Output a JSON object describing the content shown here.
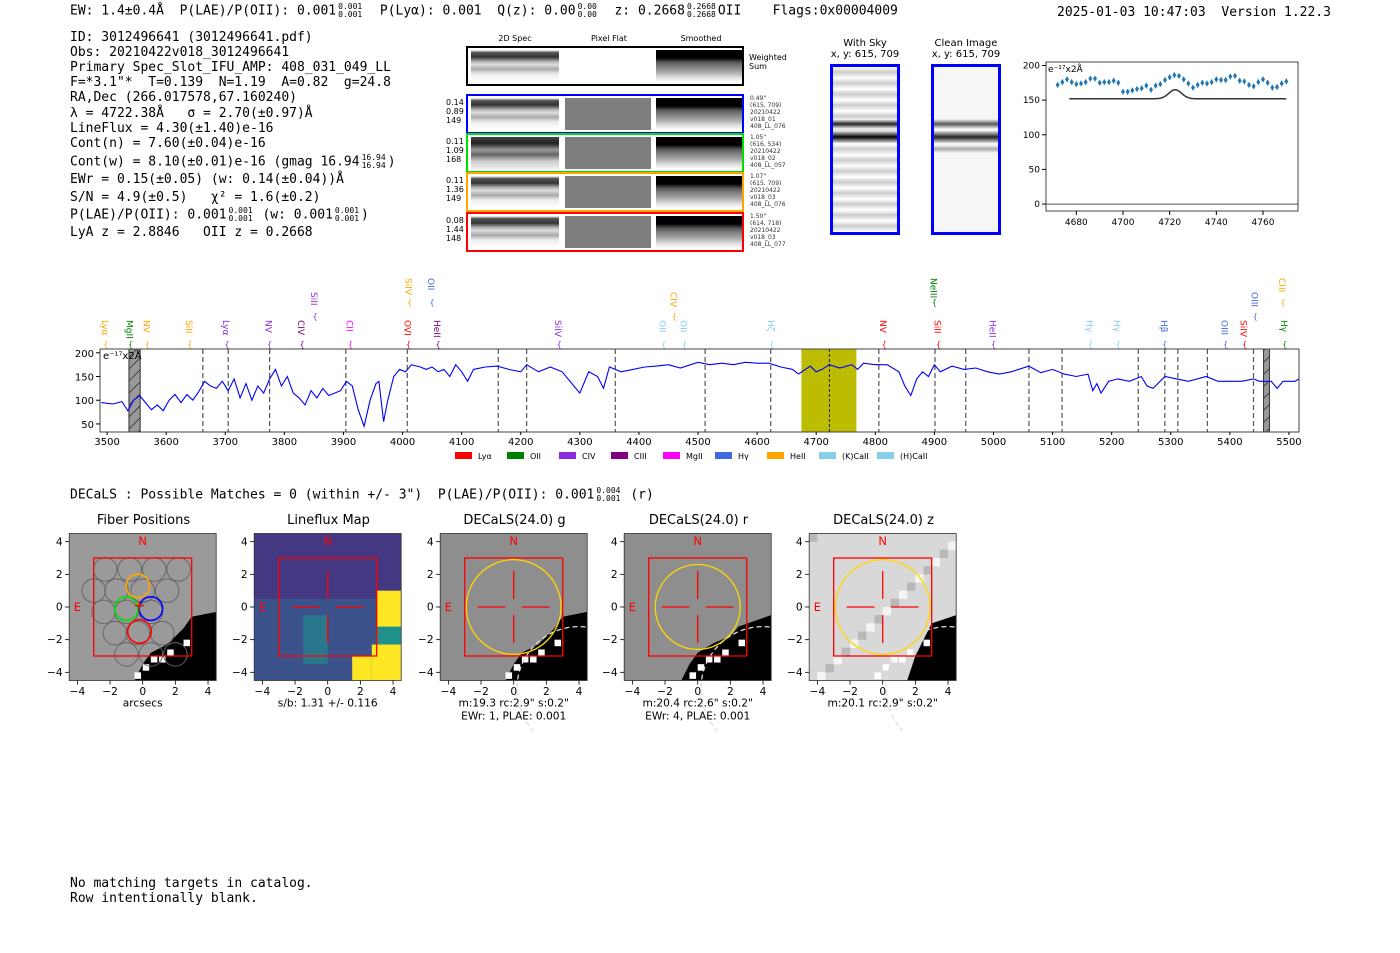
{
  "header": {
    "ew": "EW: 1.4±0.4Å",
    "plae_label": "P(LAE)/P(OII): 0.001",
    "plae_hi": "0.001",
    "plae_lo": "0.001",
    "plya": "P(Lyα): 0.001",
    "qz_label": "Q(z): 0.00",
    "qz_hi": "0.00",
    "qz_lo": "0.00",
    "z_label": "z: 0.2668",
    "z_hi": "0.2668",
    "z_lo": "0.2668",
    "z_line": "OII",
    "flags": "Flags:0x00004009",
    "timestamp": "2025-01-03 10:47:03",
    "version": "Version 1.22.3"
  },
  "info": {
    "id": "ID: 3012496641 (3012496641.pdf)",
    "obs": "Obs: 20210422v018_3012496641",
    "primary": "Primary Spec_Slot_IFU_AMP: 408_031_049_LL",
    "params": "F=*3.1\"*  T=0.139  N=1.19  A=0.82  g=24.8",
    "radec": "RA,Dec (266.017578,67.160240)",
    "lambda": "λ = 4722.38Å   σ = 2.70(±0.97)Å",
    "lineflux": "LineFlux = 4.30(±1.40)e-16",
    "contn": "Cont(n) = 7.60(±0.04)e-16",
    "contw": "Cont(w) = 8.10(±0.01)e-16 (gmag 16.94",
    "contw_hi": "16.94",
    "contw_lo": "16.94",
    "contw_end": ")",
    "ewr": "EWr = 0.15(±0.05) (w: 0.14(±0.04))Å",
    "sn": "S/N = 4.9(±0.5)   χ² = 1.6(±0.2)",
    "plae": "P(LAE)/P(OII): 0.001",
    "plae_hi": "0.001",
    "plae_lo": "0.001",
    "plae_w": "(w: 0.001",
    "plae_w_hi": "0.001",
    "plae_w_lo": "0.001",
    "plae_w_end": ")",
    "z": "LyA z = 2.8846   OII z = 0.2668"
  },
  "spec2d": {
    "col_headers": [
      "2D Spec",
      "Pixel Flat",
      "Smoothed"
    ],
    "weighted_label": "Weighted Sum",
    "rows": [
      {
        "color": "#0000ff",
        "left": [
          "0.14",
          "0.89",
          "149"
        ],
        "right": [
          "0.49\"",
          "(615, 709)",
          "20210422",
          "v018_01",
          "408_LL_076"
        ]
      },
      {
        "color": "#00e000",
        "left": [
          "0.11",
          "1.09",
          "168"
        ],
        "right": [
          "1.05\"",
          "(616, 534)",
          "20210422",
          "v018_02",
          "408_LL_057"
        ]
      },
      {
        "color": "#ffa500",
        "left": [
          "0.11",
          "1.36",
          "149"
        ],
        "right": [
          "1.07\"",
          "(615, 709)",
          "20210422",
          "v018_03",
          "408_LL_076"
        ]
      },
      {
        "color": "#ff0000",
        "left": [
          "0.08",
          "1.44",
          "148"
        ],
        "right": [
          "1.50\"",
          "(614, 718)",
          "20210422",
          "v018_03",
          "408_LL_077"
        ]
      }
    ]
  },
  "cutouts": {
    "with_sky": {
      "title": "With Sky",
      "coords": "x, y: 615, 709"
    },
    "clean": {
      "title": "Clean Image",
      "coords": "x, y: 615, 709"
    }
  },
  "decals": {
    "summary": "DECaLS : Possible Matches = 0 (within +/- 3\")  P(LAE)/P(OII): 0.001",
    "summary_hi": "0.004",
    "summary_lo": "0.001",
    "summary_end": "(r)",
    "panels": [
      {
        "title": "Fiber Positions",
        "caption": [
          "arcsecs"
        ],
        "kind": "fiber"
      },
      {
        "title": "Lineflux Map",
        "caption": [
          "s/b: 1.31 +/- 0.116"
        ],
        "kind": "lineflux"
      },
      {
        "title": "DECaLS(24.0) g",
        "caption": [
          "m:19.3 rc:2.9\"  s:0.2\"",
          "EWr: 1, PLAE: 0.001"
        ],
        "kind": "g",
        "rc": 2.9
      },
      {
        "title": "DECaLS(24.0) r",
        "caption": [
          "m:20.4 rc:2.6\"  s:0.2\"",
          "EWr: 4, PLAE: 0.001"
        ],
        "kind": "r",
        "rc": 2.6
      },
      {
        "title": "DECaLS(24.0) z",
        "caption": [
          "m:20.1 rc:2.9\"  s:0.2\""
        ],
        "kind": "z",
        "rc": 2.9
      }
    ],
    "n_label": "N",
    "e_label": "E",
    "ticks": [
      "−4",
      "−2",
      "0",
      "2",
      "4"
    ]
  },
  "footer": {
    "line1": "No matching targets in catalog.",
    "line2": "Row intentionally blank."
  },
  "chart_data": [
    {
      "type": "scatter",
      "title": "",
      "unit_label": "e⁻¹⁷x2Å",
      "xlim": [
        4667,
        4775
      ],
      "ylim": [
        -10,
        205
      ],
      "xticks": [
        4680,
        4700,
        4720,
        4740,
        4760
      ],
      "yticks": [
        0,
        50,
        100,
        150,
        200
      ],
      "x": [
        4672,
        4674,
        4676,
        4678,
        4680,
        4682,
        4684,
        4686,
        4688,
        4690,
        4692,
        4694,
        4696,
        4698,
        4700,
        4702,
        4704,
        4706,
        4708,
        4710,
        4712,
        4714,
        4716,
        4718,
        4720,
        4722,
        4724,
        4726,
        4728,
        4730,
        4732,
        4734,
        4736,
        4738,
        4740,
        4742,
        4744,
        4746,
        4748,
        4750,
        4752,
        4754,
        4756,
        4758,
        4760,
        4762,
        4764,
        4766,
        4768,
        4770
      ],
      "y": [
        172,
        176,
        180,
        176,
        173,
        174,
        176,
        181,
        181,
        175,
        176,
        176,
        178,
        175,
        162,
        162,
        164,
        166,
        167,
        171,
        165,
        171,
        173,
        179,
        183,
        186,
        185,
        180,
        174,
        168,
        172,
        175,
        174,
        176,
        180,
        179,
        179,
        184,
        185,
        178,
        177,
        172,
        170,
        176,
        180,
        175,
        168,
        169,
        174,
        177
      ],
      "error": 4,
      "model": {
        "x_range": [
          4677,
          4770
        ],
        "baseline": 152,
        "peak_wave": 4722.38,
        "amplitude": 13,
        "sigma": 2.7
      },
      "marker_color": "#1f77b4"
    },
    {
      "type": "line",
      "xlim": [
        3488,
        5517
      ],
      "ylim": [
        33,
        208
      ],
      "xticks": [
        3500,
        3600,
        3700,
        3800,
        3900,
        4000,
        4100,
        4200,
        4300,
        4400,
        4500,
        4600,
        4700,
        4800,
        4900,
        5000,
        5100,
        5200,
        5300,
        5400,
        5500
      ],
      "yticks": [
        50,
        100,
        150,
        200
      ],
      "unit_label": "e⁻¹⁷x2Å",
      "line_color": "#0000ff",
      "x": [
        3490,
        3510,
        3525,
        3535,
        3545,
        3555,
        3565,
        3575,
        3585,
        3595,
        3605,
        3615,
        3625,
        3635,
        3645,
        3655,
        3665,
        3675,
        3685,
        3695,
        3705,
        3715,
        3725,
        3735,
        3745,
        3755,
        3765,
        3775,
        3785,
        3795,
        3805,
        3815,
        3825,
        3835,
        3845,
        3855,
        3865,
        3875,
        3885,
        3895,
        3905,
        3915,
        3925,
        3935,
        3945,
        3955,
        3960,
        3968,
        3975,
        3985,
        3995,
        4005,
        4015,
        4030,
        4040,
        4050,
        4060,
        4070,
        4080,
        4090,
        4100,
        4110,
        4120,
        4140,
        4160,
        4180,
        4200,
        4210,
        4230,
        4250,
        4270,
        4290,
        4300,
        4315,
        4330,
        4340,
        4350,
        4370,
        4390,
        4410,
        4430,
        4450,
        4470,
        4500,
        4520,
        4540,
        4560,
        4580,
        4600,
        4620,
        4640,
        4660,
        4670,
        4690,
        4700,
        4710,
        4722,
        4740,
        4760,
        4770,
        4780,
        4800,
        4820,
        4840,
        4850,
        4860,
        4870,
        4880,
        4890,
        4900,
        4910,
        4930,
        4950,
        4970,
        4990,
        5010,
        5030,
        5060,
        5080,
        5100,
        5120,
        5140,
        5160,
        5168,
        5175,
        5182,
        5195,
        5210,
        5230,
        5250,
        5260,
        5270,
        5290,
        5310,
        5330,
        5360,
        5380,
        5400,
        5420,
        5440,
        5450,
        5470,
        5480,
        5490,
        5510,
        5517
      ],
      "y": [
        95,
        92,
        97,
        78,
        100,
        110,
        95,
        80,
        90,
        78,
        100,
        112,
        95,
        112,
        100,
        118,
        140,
        130,
        125,
        140,
        120,
        145,
        105,
        135,
        100,
        130,
        115,
        145,
        165,
        130,
        150,
        115,
        105,
        90,
        120,
        105,
        125,
        110,
        115,
        120,
        140,
        130,
        80,
        45,
        100,
        135,
        140,
        55,
        100,
        150,
        165,
        160,
        175,
        170,
        165,
        170,
        160,
        165,
        150,
        175,
        160,
        140,
        165,
        170,
        172,
        165,
        160,
        175,
        160,
        170,
        160,
        130,
        115,
        160,
        150,
        125,
        170,
        160,
        165,
        170,
        172,
        175,
        168,
        180,
        175,
        178,
        175,
        180,
        178,
        178,
        170,
        165,
        155,
        172,
        160,
        165,
        175,
        168,
        175,
        165,
        178,
        175,
        175,
        160,
        130,
        110,
        145,
        160,
        150,
        175,
        160,
        172,
        165,
        168,
        160,
        155,
        160,
        172,
        158,
        165,
        155,
        150,
        155,
        120,
        135,
        115,
        140,
        145,
        140,
        150,
        130,
        125,
        150,
        145,
        140,
        150,
        140,
        140,
        140,
        145,
        140,
        140,
        125,
        140,
        140,
        145
      ],
      "dashed_lines": [
        3662,
        3705,
        3775,
        3904,
        4008,
        4162,
        4210,
        4360,
        4512,
        4623,
        4806,
        4901,
        4953,
        5060,
        5116,
        5245,
        5290,
        5312,
        5362,
        5440
      ],
      "center_line": 4722.38,
      "highlight": [
        4675,
        4768
      ],
      "highlight_color": "#bcbd00",
      "masked": [
        [
          3537,
          3556
        ],
        [
          5457,
          5467
        ]
      ],
      "line_labels": [
        {
          "name": "Lyα",
          "wave": 3498,
          "color": "#ffa500",
          "row": "low"
        },
        {
          "name": "MgII",
          "wave": 3540,
          "color": "#008000",
          "row": "low"
        },
        {
          "name": "NV",
          "wave": 3568,
          "color": "#ffa500",
          "row": "low"
        },
        {
          "name": "SiII",
          "wave": 3640,
          "color": "#ffa500",
          "row": "low"
        },
        {
          "name": "Lyα",
          "wave": 3703,
          "color": "#8a2be2",
          "row": "low"
        },
        {
          "name": "NV",
          "wave": 3775,
          "color": "#8a2be2",
          "row": "low"
        },
        {
          "name": "CIV",
          "wave": 3830,
          "color": "#800080",
          "row": "low"
        },
        {
          "name": "SiII",
          "wave": 3852,
          "color": "#8a2be2",
          "row": "low"
        },
        {
          "name": "CII",
          "wave": 3912,
          "color": "#ff00ff",
          "row": "low"
        },
        {
          "name": "OVI",
          "wave": 4010,
          "color": "#ff0000",
          "row": "low"
        },
        {
          "name": "HeII",
          "wave": 4060,
          "color": "#800080",
          "row": "low"
        },
        {
          "name": "SiIV",
          "wave": 4265,
          "color": "#8a2be2",
          "row": "low"
        },
        {
          "name": "OII",
          "wave": 4442,
          "color": "#87ceeb",
          "row": "low"
        },
        {
          "name": "CIV",
          "wave": 4460,
          "color": "#ffa500",
          "row": "low"
        },
        {
          "name": "OII",
          "wave": 4477,
          "color": "#87ceeb",
          "row": "low"
        },
        {
          "name": "Hζ",
          "wave": 4625,
          "color": "#87ceeb",
          "row": "low"
        },
        {
          "name": "NV",
          "wave": 4815,
          "color": "#ff0000",
          "row": "low"
        },
        {
          "name": "SiII",
          "wave": 4907,
          "color": "#ff0000",
          "row": "low"
        },
        {
          "name": "HeII",
          "wave": 5000,
          "color": "#8a2be2",
          "row": "low"
        },
        {
          "name": "Hγ",
          "wave": 5164,
          "color": "#87ceeb",
          "row": "low"
        },
        {
          "name": "Hγ",
          "wave": 5211,
          "color": "#87ceeb",
          "row": "low"
        },
        {
          "name": "Hβ",
          "wave": 5290,
          "color": "#4169e1",
          "row": "low"
        },
        {
          "name": "OIII",
          "wave": 5393,
          "color": "#4169e1",
          "row": "low"
        },
        {
          "name": "SiIV",
          "wave": 5425,
          "color": "#ff0000",
          "row": "low"
        },
        {
          "name": "OIII",
          "wave": 5443,
          "color": "#4169e1",
          "row": "low"
        },
        {
          "name": "Hγ",
          "wave": 5493,
          "color": "#008000",
          "row": "low"
        },
        {
          "name": "SiIV",
          "wave": 4012,
          "color": "#ffa500",
          "row": "high"
        },
        {
          "name": "OII",
          "wave": 4050,
          "color": "#4169e1",
          "row": "high"
        },
        {
          "name": "NeIII",
          "wave": 4900,
          "color": "#008000",
          "row": "high"
        },
        {
          "name": "CIII",
          "wave": 5490,
          "color": "#ffa500",
          "row": "high"
        }
      ],
      "legend": [
        {
          "label": "Lyα",
          "color": "#ff0000"
        },
        {
          "label": "OII",
          "color": "#008000"
        },
        {
          "label": "CIV",
          "color": "#8a2be2"
        },
        {
          "label": "CIII",
          "color": "#800080"
        },
        {
          "label": "MgII",
          "color": "#ff00ff"
        },
        {
          "label": "Hγ",
          "color": "#4169e1"
        },
        {
          "label": "HeII",
          "color": "#ffa500"
        },
        {
          "label": "(K)CaII",
          "color": "#87ceeb"
        },
        {
          "label": "(H)CaII",
          "color": "#87ceeb"
        }
      ],
      "legend_position": "bottom-right"
    }
  ]
}
